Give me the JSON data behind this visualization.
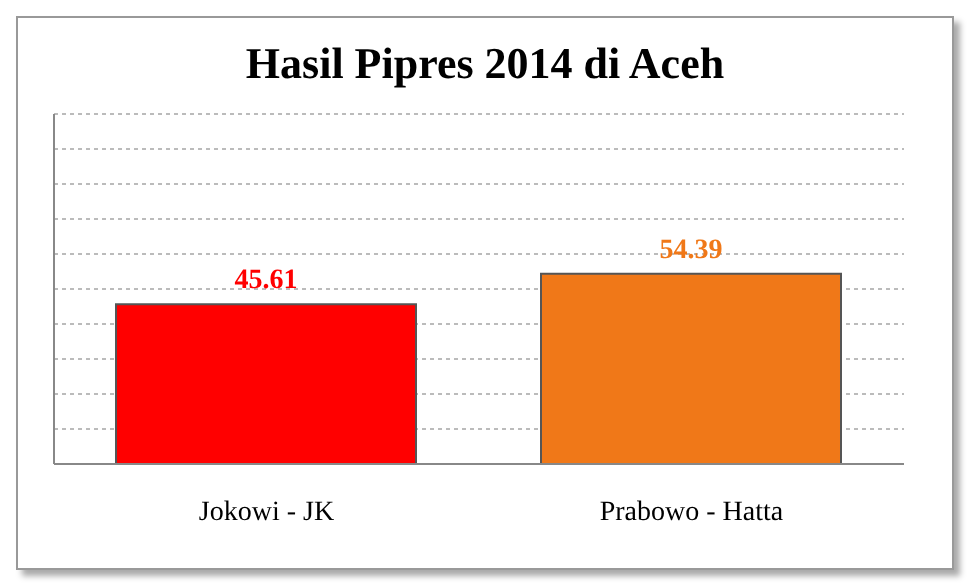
{
  "chart_data": {
    "type": "bar",
    "title": "Hasil Pipres 2014 di Aceh",
    "categories": [
      "Jokowi - JK",
      "Prabowo - Hatta"
    ],
    "values": [
      45.61,
      54.39
    ],
    "colors": [
      "#ff0000",
      "#f07818"
    ],
    "ylim": [
      0,
      100
    ],
    "tick_labels": "x",
    "grid": "y",
    "data_labels": true
  }
}
